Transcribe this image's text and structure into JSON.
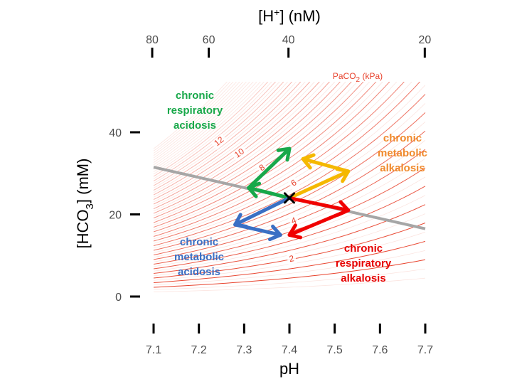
{
  "chart_data": {
    "type": "line",
    "xlabel": "pH",
    "ylabel_prefix": "[HCO",
    "ylabel_sub": "3",
    "ylabel_suffix": "] (mM)",
    "top_label_prefix": "[H",
    "top_label_sup": "+",
    "top_label_suffix": "] (nM)",
    "xlim": [
      7.1,
      7.7
    ],
    "ylim": [
      0,
      40
    ],
    "x_ticks": [
      "7.1",
      "7.2",
      "7.3",
      "7.4",
      "7.5",
      "7.6",
      "7.7"
    ],
    "y_ticks": [
      "0",
      "20",
      "40"
    ],
    "top_ticks": [
      "80",
      "60",
      "40",
      "20"
    ],
    "isopleth_title_prefix": "PaCO",
    "isopleth_title_sub": "2",
    "isopleth_title_suffix": " (kPa)",
    "isopleth_labels": [
      "2",
      "4",
      "6",
      "8",
      "10",
      "12"
    ],
    "isopleths_kpa": [
      1,
      1.5,
      2,
      2.5,
      3,
      3.5,
      4,
      4.5,
      5,
      5.5,
      6,
      6.5,
      7,
      7.5,
      8,
      8.5,
      9,
      9.5,
      10,
      10.5,
      11,
      11.5,
      12,
      12.5,
      13
    ],
    "buffer_line": {
      "x": [
        7.1,
        7.7
      ],
      "y": [
        31.5,
        16.5
      ]
    },
    "normal_point": {
      "x": 7.4,
      "y": 24
    },
    "arrows": [
      {
        "name": "chronic respiratory acidosis",
        "color": "#18a84a",
        "path": [
          [
            7.4,
            24
          ],
          [
            7.31,
            26.5
          ],
          [
            7.4,
            36
          ]
        ]
      },
      {
        "name": "chronic metabolic alkalosis",
        "color": "#f5b800",
        "path": [
          [
            7.4,
            24
          ],
          [
            7.53,
            30.5
          ],
          [
            7.43,
            33.5
          ]
        ]
      },
      {
        "name": "chronic respiratory alkalosis",
        "color": "#f00000",
        "path": [
          [
            7.4,
            24
          ],
          [
            7.53,
            21
          ],
          [
            7.4,
            15
          ]
        ]
      },
      {
        "name": "chronic metabolic acidosis",
        "color": "#3a6fc4",
        "path": [
          [
            7.4,
            24
          ],
          [
            7.28,
            17.5
          ],
          [
            7.38,
            15
          ]
        ]
      }
    ],
    "labels": [
      {
        "lines": [
          "chronic",
          "respiratory",
          "acidosis"
        ],
        "color": "#18a84a"
      },
      {
        "lines": [
          "chronic",
          "metabolic",
          "alkalosis"
        ],
        "color": "#f08a2c"
      },
      {
        "lines": [
          "chronic",
          "respiratory",
          "alkalosis"
        ],
        "color": "#e60000"
      },
      {
        "lines": [
          "chronic",
          "metabolic",
          "acidosis"
        ],
        "color": "#3a6fc4"
      }
    ],
    "colors": {
      "isopleth_major": "#e8422c",
      "isopleth_minor": "#f8c8c0",
      "buffer_line": "#a6a6a6",
      "axis": "#000000"
    },
    "grid": false
  }
}
